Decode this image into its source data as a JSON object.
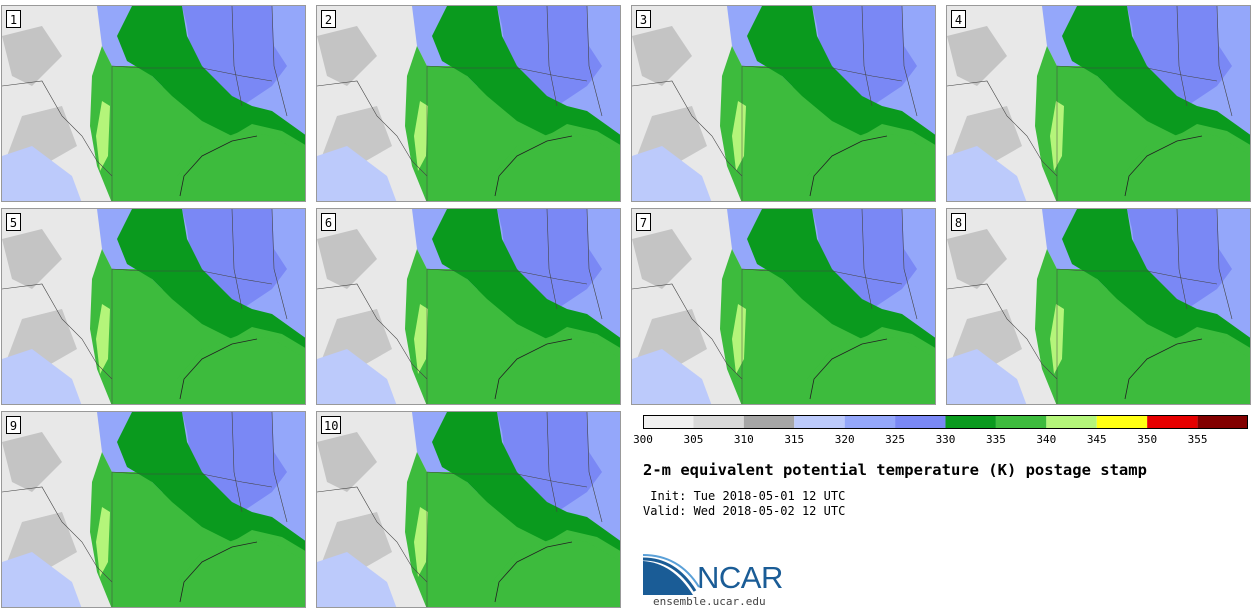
{
  "stamps": [
    {
      "label": "1"
    },
    {
      "label": "2"
    },
    {
      "label": "3"
    },
    {
      "label": "4"
    },
    {
      "label": "5"
    },
    {
      "label": "6"
    },
    {
      "label": "7"
    },
    {
      "label": "8"
    },
    {
      "label": "9"
    },
    {
      "label": "10"
    }
  ],
  "colorbar": {
    "colors": [
      "#f0f0f0",
      "#d9d9d9",
      "#a6a6a6",
      "#bccafb",
      "#94a7fa",
      "#7a88f5",
      "#0a9a1e",
      "#3dbb3d",
      "#b4f57a",
      "#ffff14",
      "#e60000",
      "#820000"
    ],
    "ticks": [
      "300",
      "305",
      "310",
      "315",
      "320",
      "325",
      "330",
      "335",
      "340",
      "345",
      "350",
      "355"
    ]
  },
  "title": "2-m equivalent potential temperature (K) postage stamp",
  "init": " Init: Tue 2018-05-01 12 UTC",
  "valid": "Valid: Wed 2018-05-02 12 UTC",
  "logo": {
    "text": "NCAR",
    "url": "ensemble.ucar.edu",
    "color": "#1a5c96"
  },
  "map_colors": {
    "background_gray": "#e8e8e8",
    "gray_mid": "#a6a6a6",
    "light_blue": "#bccafb",
    "mid_blue": "#94a7fa",
    "blue": "#7a88f5",
    "dark_green": "#0a9a1e",
    "green": "#3dbb3d",
    "light_green": "#b4f57a"
  }
}
